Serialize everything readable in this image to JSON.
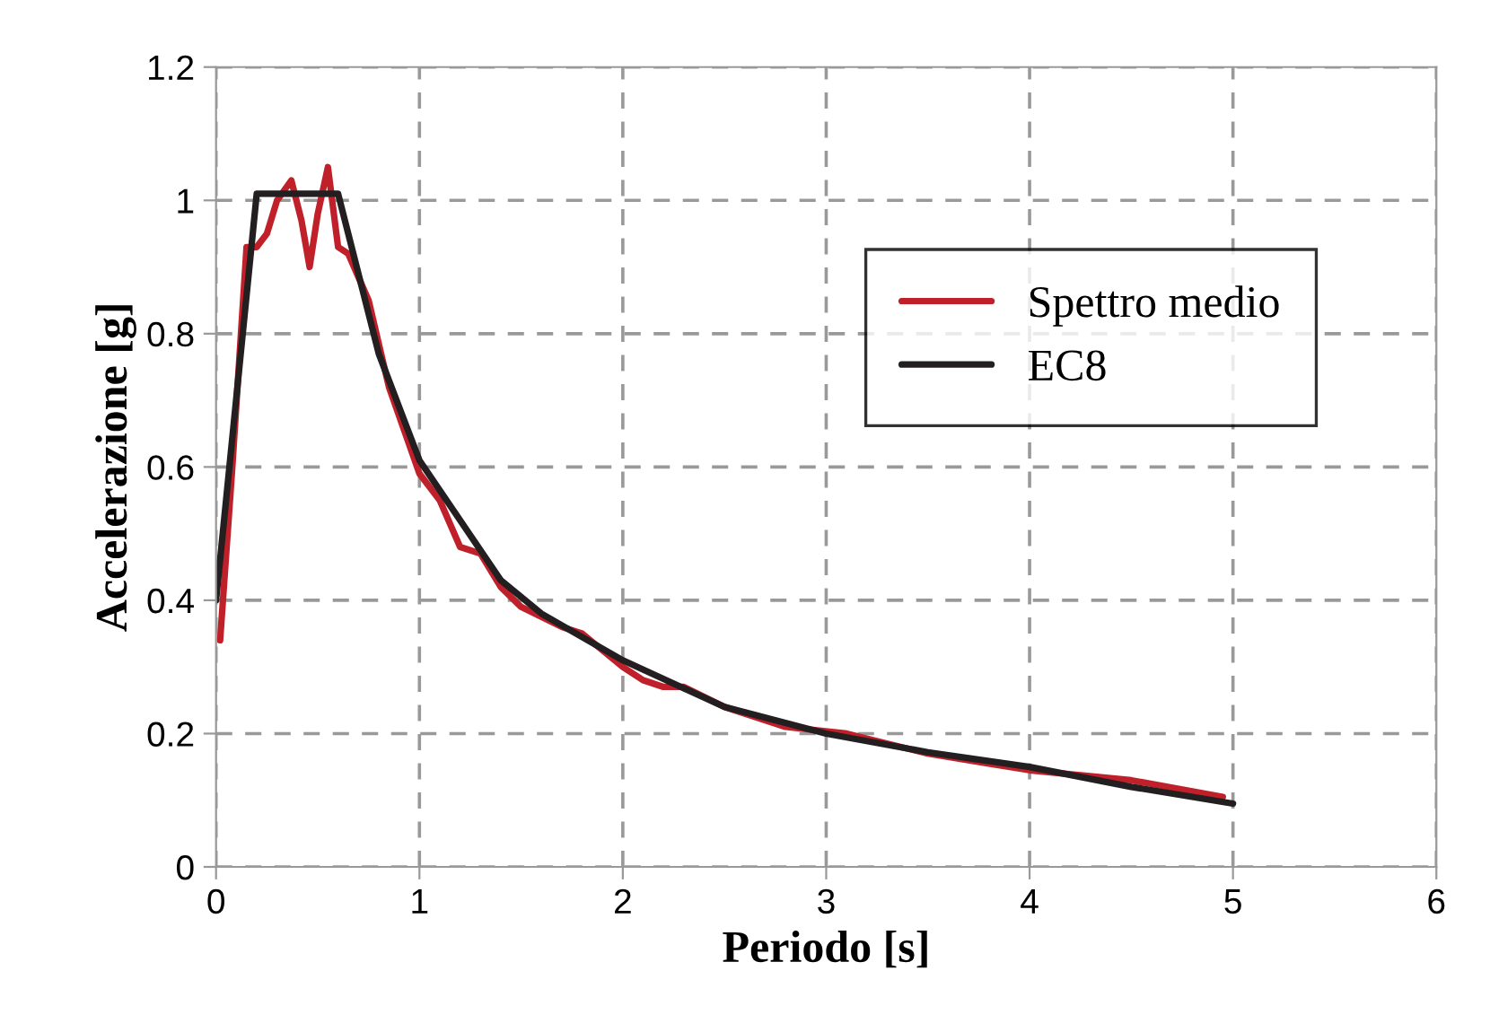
{
  "chart_data": {
    "type": "line",
    "xlabel": "Periodo [s]",
    "ylabel": "Accelerazione [g]",
    "xlim": [
      0,
      6
    ],
    "xticks": [
      0,
      1,
      2,
      3,
      4,
      5,
      6
    ],
    "ylim": [
      0,
      1.2
    ],
    "yticks": [
      0,
      0.2,
      0.4,
      0.6,
      0.8,
      1,
      1.2
    ],
    "grid": true,
    "legend": "top right",
    "line_style": "solid",
    "marker": "none",
    "series": [
      {
        "name": "Spettro medio",
        "color": "#c0202a",
        "x": [
          0.02,
          0.08,
          0.15,
          0.2,
          0.25,
          0.3,
          0.37,
          0.42,
          0.46,
          0.5,
          0.55,
          0.6,
          0.65,
          0.75,
          0.85,
          1.0,
          1.1,
          1.2,
          1.3,
          1.4,
          1.5,
          1.7,
          1.8,
          2.0,
          2.1,
          2.2,
          2.3,
          2.5,
          2.8,
          3.1,
          3.5,
          3.8,
          4.0,
          4.5,
          4.95
        ],
        "values": [
          0.34,
          0.6,
          0.93,
          0.93,
          0.95,
          1.0,
          1.03,
          0.97,
          0.9,
          0.98,
          1.05,
          0.93,
          0.92,
          0.85,
          0.72,
          0.59,
          0.55,
          0.48,
          0.47,
          0.42,
          0.39,
          0.36,
          0.35,
          0.3,
          0.28,
          0.27,
          0.27,
          0.24,
          0.21,
          0.2,
          0.17,
          0.155,
          0.145,
          0.13,
          0.105
        ]
      },
      {
        "name": "EC8",
        "color": "#231f20",
        "x": [
          0,
          0.2,
          0.6,
          0.8,
          1.0,
          1.2,
          1.4,
          1.6,
          2.0,
          2.5,
          3.0,
          3.5,
          4.0,
          4.5,
          5.0
        ],
        "values": [
          0.4,
          1.01,
          1.01,
          0.77,
          0.61,
          0.52,
          0.43,
          0.38,
          0.31,
          0.24,
          0.2,
          0.172,
          0.15,
          0.12,
          0.095
        ]
      }
    ]
  }
}
